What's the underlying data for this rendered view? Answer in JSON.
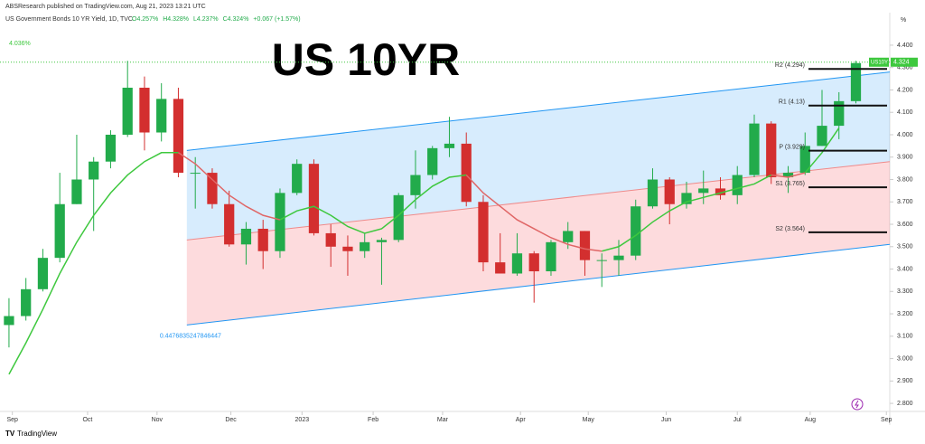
{
  "header": {
    "publisher": "ABSResearch published on TradingView.com, Aug 21, 2023 13:21 UTC",
    "symbol": "US Government Bonds 10 YR Yield, 1D, TVC",
    "ohlc": [
      "O4.257%",
      "H4.328%",
      "L4.237%",
      "C4.324%",
      "+0.067 (+1.57%)"
    ]
  },
  "footer": {
    "brand": "TradingView"
  },
  "chart_data": {
    "type": "candlestick",
    "title": "US 10YR",
    "up_color": "#22ab4b",
    "down_color": "#d32f2f",
    "open": [
      3.15,
      3.19,
      3.31,
      3.45,
      3.69,
      3.8,
      3.88,
      4.0,
      4.21,
      4.01,
      4.16,
      3.83,
      3.83,
      3.69,
      3.51,
      3.58,
      3.48,
      3.74,
      3.87,
      3.56,
      3.5,
      3.48,
      3.52,
      3.53,
      3.73,
      3.82,
      3.94,
      3.96,
      3.7,
      3.43,
      3.38,
      3.47,
      3.39,
      3.52,
      3.57,
      3.44,
      3.44,
      3.46,
      3.68,
      3.8,
      3.69,
      3.74,
      3.76,
      3.73,
      3.82,
      4.05,
      3.81,
      3.83,
      3.95,
      4.04,
      4.15
    ],
    "high": [
      3.27,
      3.36,
      3.49,
      3.83,
      4.0,
      3.9,
      4.02,
      4.33,
      4.26,
      4.23,
      4.21,
      3.9,
      3.85,
      3.75,
      3.61,
      3.62,
      3.76,
      3.89,
      3.89,
      3.6,
      3.55,
      3.56,
      3.54,
      3.74,
      3.93,
      3.95,
      4.08,
      4.01,
      3.73,
      3.56,
      3.56,
      3.48,
      3.53,
      3.61,
      3.57,
      3.47,
      3.53,
      3.71,
      3.85,
      3.81,
      3.79,
      3.84,
      3.81,
      3.86,
      4.09,
      4.06,
      3.86,
      4.01,
      4.2,
      4.19,
      4.33
    ],
    "low": [
      3.05,
      3.17,
      3.3,
      3.43,
      3.69,
      3.57,
      3.85,
      3.99,
      3.93,
      3.97,
      3.81,
      3.67,
      3.67,
      3.5,
      3.42,
      3.4,
      3.45,
      3.73,
      3.55,
      3.41,
      3.37,
      3.45,
      3.33,
      3.52,
      3.67,
      3.8,
      3.9,
      3.68,
      3.39,
      3.38,
      3.37,
      3.25,
      3.37,
      3.49,
      3.37,
      3.32,
      3.37,
      3.44,
      3.67,
      3.6,
      3.67,
      3.69,
      3.71,
      3.69,
      3.81,
      3.78,
      3.74,
      3.82,
      3.95,
      3.98,
      4.14
    ],
    "close": [
      3.19,
      3.31,
      3.45,
      3.69,
      3.8,
      3.88,
      4.0,
      4.21,
      4.01,
      4.16,
      3.83,
      3.83,
      3.69,
      3.51,
      3.58,
      3.48,
      3.74,
      3.87,
      3.56,
      3.5,
      3.48,
      3.52,
      3.53,
      3.73,
      3.82,
      3.94,
      3.96,
      3.7,
      3.43,
      3.38,
      3.47,
      3.39,
      3.52,
      3.57,
      3.44,
      3.44,
      3.46,
      3.68,
      3.8,
      3.69,
      3.74,
      3.76,
      3.73,
      3.82,
      4.05,
      3.81,
      3.83,
      3.95,
      4.04,
      4.15,
      4.32
    ],
    "overlays": [
      {
        "color": "#3ec83e",
        "values": [
          2.93,
          3.07,
          3.22,
          3.38,
          3.52,
          3.64,
          3.74,
          3.82,
          3.88,
          3.92,
          3.92,
          null,
          null,
          null,
          null,
          null,
          3.62,
          3.66,
          3.68,
          3.64,
          3.59,
          3.56,
          3.58,
          3.64,
          3.71,
          3.77,
          3.81,
          3.82,
          null,
          null,
          null,
          null,
          null,
          null,
          null,
          3.48,
          3.5,
          3.55,
          3.61,
          3.66,
          3.7,
          3.72,
          3.74,
          3.76,
          3.78,
          3.82,
          null,
          3.83,
          3.92,
          4.03,
          null
        ]
      },
      {
        "color": "#e06666",
        "values": [
          null,
          null,
          null,
          null,
          null,
          null,
          null,
          null,
          null,
          null,
          3.92,
          3.87,
          3.8,
          3.73,
          3.68,
          3.64,
          3.62,
          null,
          null,
          null,
          null,
          null,
          null,
          null,
          null,
          null,
          null,
          3.82,
          3.74,
          3.68,
          3.62,
          3.58,
          3.54,
          3.51,
          3.49,
          3.48,
          null,
          null,
          null,
          null,
          null,
          null,
          null,
          null,
          null,
          3.82,
          3.81,
          3.83,
          null,
          null,
          null
        ]
      }
    ],
    "channel": {
      "x": [
        10.5,
        52.0
      ],
      "upper": [
        3.93,
        4.28
      ],
      "mid": [
        3.53,
        3.88
      ],
      "lower": [
        3.15,
        3.51
      ],
      "label": "0.4476835247846447"
    },
    "pivots": [
      {
        "value": 4.294,
        "label": "R2 (4.294)"
      },
      {
        "value": 4.13,
        "label": "R1 (4.13)"
      },
      {
        "value": 3.929,
        "label": "P (3.929)"
      },
      {
        "value": 3.765,
        "label": "S1 (3.765)"
      },
      {
        "value": 3.564,
        "label": "S2 (3.564)"
      }
    ],
    "price_tag": 4.324,
    "symbol_tag": "US10Y",
    "annotation": "4.036%",
    "unit": "%",
    "xlim": [
      -0.53,
      52.0
    ],
    "ylim": [
      2.764,
      4.521
    ],
    "xticks": [
      {
        "value": 0.2,
        "label": "Sep"
      },
      {
        "value": 4.64,
        "label": "Oct"
      },
      {
        "value": 8.74,
        "label": "Nov"
      },
      {
        "value": 13.1,
        "label": "Dec"
      },
      {
        "value": 17.3,
        "label": "2023"
      },
      {
        "value": 21.5,
        "label": "Feb"
      },
      {
        "value": 25.6,
        "label": "Mar"
      },
      {
        "value": 30.2,
        "label": "Apr"
      },
      {
        "value": 34.2,
        "label": "May"
      },
      {
        "value": 38.8,
        "label": "Jun"
      },
      {
        "value": 43.0,
        "label": "Jul"
      },
      {
        "value": 47.3,
        "label": "Aug"
      },
      {
        "value": 51.8,
        "label": "Sep"
      }
    ],
    "yticks": [
      {
        "value": 4.4,
        "label": "4.400"
      },
      {
        "value": 4.3,
        "label": "4.300"
      },
      {
        "value": 4.2,
        "label": "4.200"
      },
      {
        "value": 4.1,
        "label": "4.100"
      },
      {
        "value": 4.0,
        "label": "4.000"
      },
      {
        "value": 3.9,
        "label": "3.900"
      },
      {
        "value": 3.8,
        "label": "3.800"
      },
      {
        "value": 3.7,
        "label": "3.700"
      },
      {
        "value": 3.6,
        "label": "3.600"
      },
      {
        "value": 3.5,
        "label": "3.500"
      },
      {
        "value": 3.4,
        "label": "3.400"
      },
      {
        "value": 3.3,
        "label": "3.300"
      },
      {
        "value": 3.2,
        "label": "3.200"
      },
      {
        "value": 3.1,
        "label": "3.100"
      },
      {
        "value": 3.0,
        "label": "3.000"
      },
      {
        "value": 2.9,
        "label": "2.900"
      },
      {
        "value": 2.8,
        "label": "2.800"
      }
    ]
  }
}
